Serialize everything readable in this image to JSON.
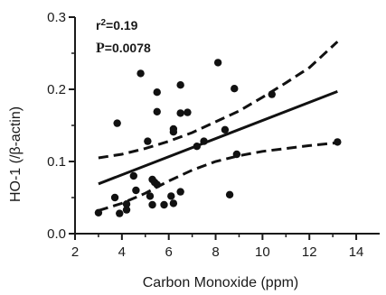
{
  "chart_data": {
    "type": "scatter",
    "xlabel": "Carbon Monoxide (ppm)",
    "ylabel": "HO-1 (/β-actin)",
    "xlim": [
      2,
      15
    ],
    "ylim": [
      0.0,
      0.3
    ],
    "x_ticks": [
      2,
      4,
      6,
      8,
      10,
      12,
      14
    ],
    "y_ticks": [
      0.0,
      0.1,
      0.2,
      0.3
    ],
    "x_tick_labels": [
      "2",
      "4",
      "6",
      "8",
      "10",
      "12",
      "14"
    ],
    "y_tick_labels": [
      "0.0",
      "0.1",
      "0.2",
      "0.3"
    ],
    "annotations": {
      "r2_prefix": "r",
      "r2_sup": "2",
      "r2_value": "=0.19",
      "p_letter": "P",
      "p_value": "=0.0078"
    },
    "points": [
      {
        "x": 3.0,
        "y": 0.029
      },
      {
        "x": 3.7,
        "y": 0.05
      },
      {
        "x": 3.8,
        "y": 0.153
      },
      {
        "x": 3.9,
        "y": 0.028
      },
      {
        "x": 4.2,
        "y": 0.033
      },
      {
        "x": 4.2,
        "y": 0.041
      },
      {
        "x": 4.5,
        "y": 0.08
      },
      {
        "x": 4.6,
        "y": 0.06
      },
      {
        "x": 4.8,
        "y": 0.222
      },
      {
        "x": 5.1,
        "y": 0.128
      },
      {
        "x": 5.2,
        "y": 0.052
      },
      {
        "x": 5.3,
        "y": 0.04
      },
      {
        "x": 5.3,
        "y": 0.075
      },
      {
        "x": 5.4,
        "y": 0.071
      },
      {
        "x": 5.5,
        "y": 0.196
      },
      {
        "x": 5.5,
        "y": 0.068
      },
      {
        "x": 5.5,
        "y": 0.169
      },
      {
        "x": 5.8,
        "y": 0.04
      },
      {
        "x": 6.1,
        "y": 0.052
      },
      {
        "x": 6.2,
        "y": 0.141
      },
      {
        "x": 6.2,
        "y": 0.145
      },
      {
        "x": 6.2,
        "y": 0.042
      },
      {
        "x": 6.5,
        "y": 0.206
      },
      {
        "x": 6.5,
        "y": 0.167
      },
      {
        "x": 6.5,
        "y": 0.058
      },
      {
        "x": 6.8,
        "y": 0.168
      },
      {
        "x": 7.2,
        "y": 0.121
      },
      {
        "x": 7.5,
        "y": 0.128
      },
      {
        "x": 8.1,
        "y": 0.237
      },
      {
        "x": 8.4,
        "y": 0.144
      },
      {
        "x": 8.6,
        "y": 0.054
      },
      {
        "x": 8.8,
        "y": 0.201
      },
      {
        "x": 8.9,
        "y": 0.11
      },
      {
        "x": 10.4,
        "y": 0.193
      },
      {
        "x": 13.2,
        "y": 0.127
      }
    ],
    "regression": {
      "x": [
        3.0,
        13.2
      ],
      "y": [
        0.069,
        0.197
      ]
    },
    "ci_upper": {
      "x": [
        3.0,
        4.0,
        5.0,
        6.0,
        7.0,
        8.0,
        9.0,
        10.0,
        11.0,
        12.0,
        13.2
      ],
      "y": [
        0.105,
        0.11,
        0.118,
        0.128,
        0.14,
        0.155,
        0.17,
        0.189,
        0.209,
        0.23,
        0.266
      ]
    },
    "ci_lower": {
      "x": [
        3.0,
        4.0,
        5.0,
        6.0,
        7.0,
        8.0,
        9.0,
        10.0,
        11.0,
        12.0,
        13.2
      ],
      "y": [
        0.032,
        0.042,
        0.056,
        0.073,
        0.088,
        0.1,
        0.108,
        0.114,
        0.118,
        0.122,
        0.126
      ]
    }
  }
}
